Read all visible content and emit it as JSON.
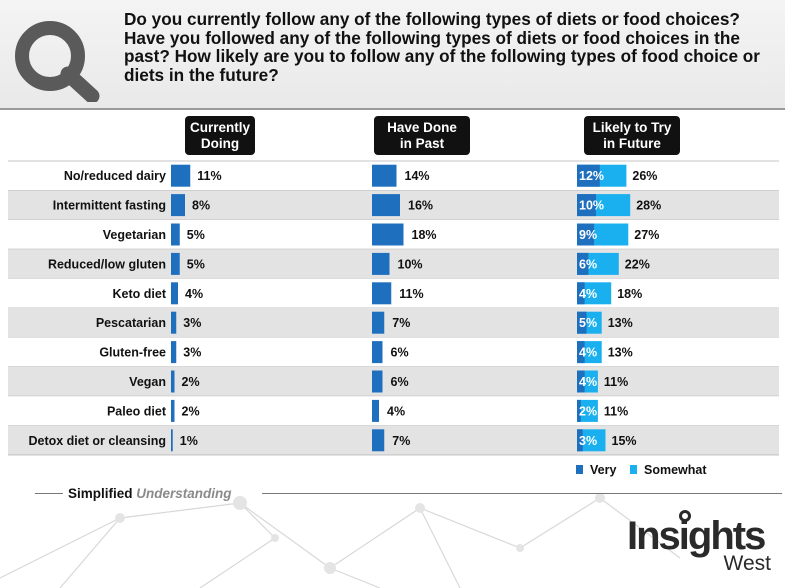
{
  "question": "Do you currently follow any of the following types of diets or food choices? Have you followed any of the following types of diets or food choices in the past? How likely are you to follow any of the following types of food choice or diets in the future?",
  "tagline": {
    "part1": "Simplified",
    "part2": "Understanding"
  },
  "brand": {
    "main": "Insights",
    "sub": "West"
  },
  "colors": {
    "very": "#1f6fbf",
    "somewhat": "#1ab0ef",
    "current": "#1f6fbf",
    "past": "#1f6fbf",
    "header_bg": "#111111"
  },
  "chart_data": {
    "type": "bar",
    "categories": [
      "No/reduced dairy",
      "Intermittent fasting",
      "Vegetarian",
      "Reduced/low gluten",
      "Keto diet",
      "Pescatarian",
      "Gluten-free",
      "Vegan",
      "Paleo diet",
      "Detox diet or cleansing"
    ],
    "column_headers": [
      {
        "line1": "Currently",
        "line2": "Doing"
      },
      {
        "line1": "Have Done",
        "line2": "in Past"
      },
      {
        "line1": "Likely to Try",
        "line2": "in Future"
      }
    ],
    "series": [
      {
        "values": [
          11,
          8,
          5,
          5,
          4,
          3,
          3,
          2,
          2,
          1
        ],
        "labels": [
          "11%",
          "8%",
          "5%",
          "5%",
          "4%",
          "3%",
          "3%",
          "2%",
          "2%",
          "1%"
        ]
      },
      {
        "values": [
          14,
          16,
          18,
          10,
          11,
          7,
          6,
          6,
          4,
          7
        ],
        "labels": [
          "14%",
          "16%",
          "18%",
          "10%",
          "11%",
          "7%",
          "6%",
          "6%",
          "4%",
          "7%"
        ]
      },
      {
        "name": "Very",
        "values": [
          12,
          10,
          9,
          6,
          4,
          5,
          4,
          4,
          2,
          3
        ],
        "labels": [
          "12%",
          "10%",
          "9%",
          "6%",
          "4%",
          "5%",
          "4%",
          "4%",
          "2%",
          "3%"
        ]
      },
      {
        "name": "Somewhat",
        "total_values": [
          26,
          28,
          27,
          22,
          18,
          13,
          13,
          11,
          11,
          15
        ],
        "total_labels": [
          "26%",
          "28%",
          "27%",
          "22%",
          "18%",
          "13%",
          "13%",
          "11%",
          "11%",
          "15%"
        ]
      }
    ],
    "legend": {
      "very": "Very",
      "somewhat": "Somewhat",
      "placement": "bottom-right"
    }
  }
}
